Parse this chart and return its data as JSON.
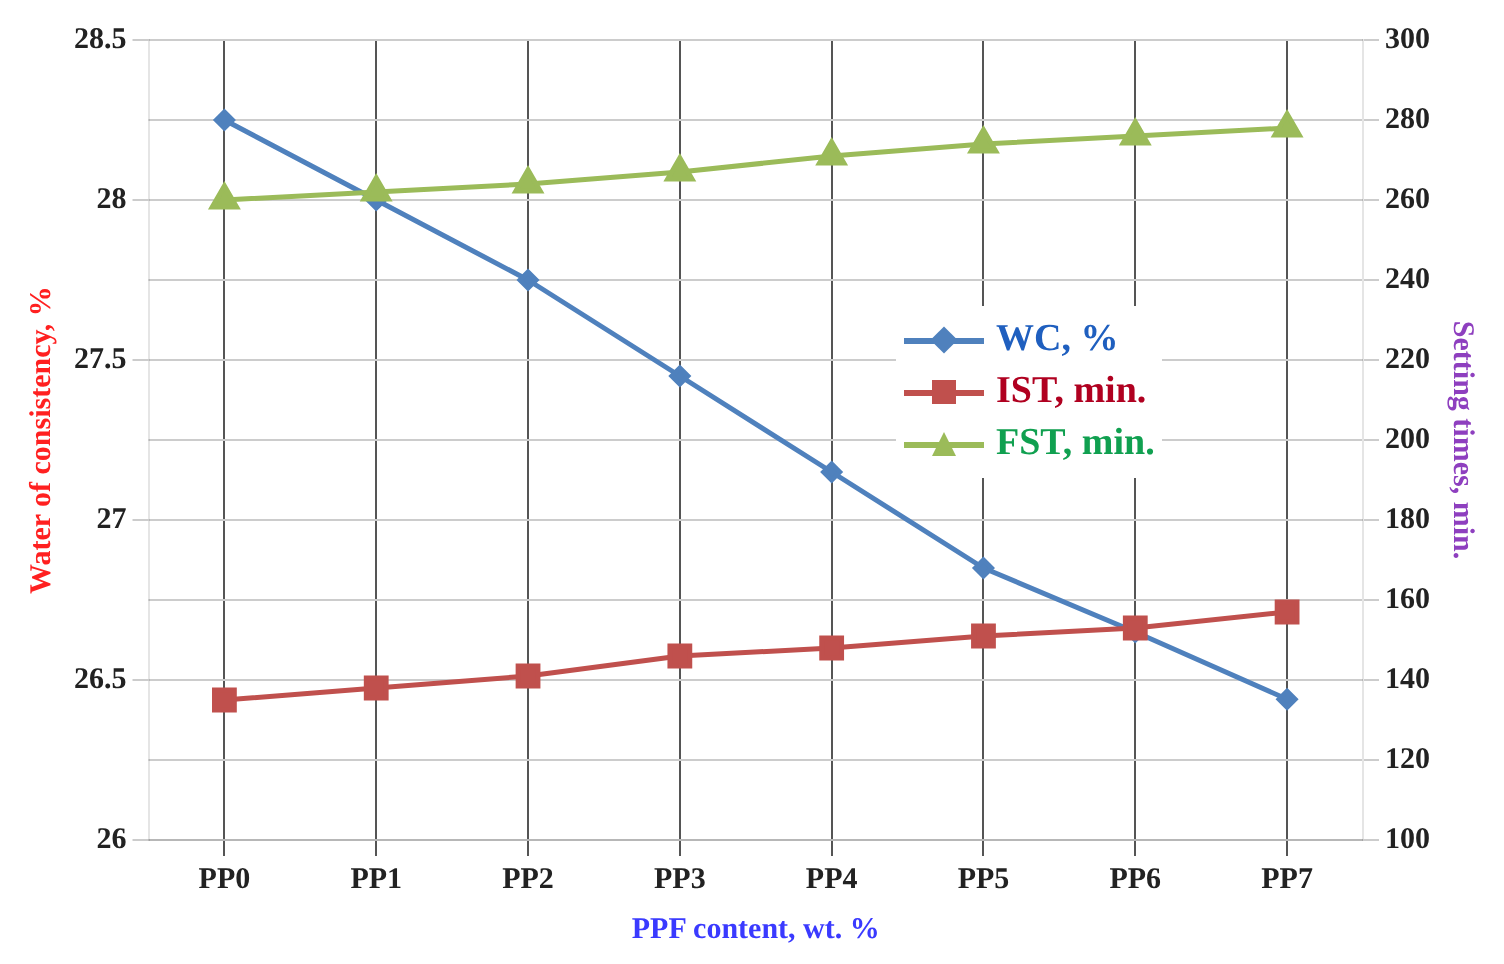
{
  "chart_data": {
    "type": "line",
    "xlabel": "PPF content, wt. %",
    "ylabel": "Water of consistency, %",
    "y2label": "Setting times, min.",
    "categories": [
      "PP0",
      "PP1",
      "PP2",
      "PP3",
      "PP4",
      "PP5",
      "PP6",
      "PP7"
    ],
    "series": [
      {
        "name": "WC, %",
        "color": "#4f81bd",
        "marker": "diamond",
        "values": [
          28.25,
          28.0,
          27.75,
          27.45,
          27.15,
          26.85,
          26.65,
          26.44
        ]
      },
      {
        "name": "IST, min.",
        "color": "#c0504d",
        "marker": "square",
        "axis": "y2",
        "values": [
          135,
          138,
          141,
          146,
          148,
          151,
          153,
          157
        ]
      },
      {
        "name": "FST, min.",
        "color": "#9bbb59",
        "marker": "triangle",
        "axis": "y2",
        "values": [
          260,
          262,
          264,
          267,
          271,
          274,
          276,
          278
        ]
      }
    ],
    "ylim": [
      26,
      28.5
    ],
    "yticks": [
      26,
      26.5,
      27,
      27.5,
      28,
      28.5
    ],
    "y2lim": [
      100,
      300
    ],
    "y2ticks": [
      100,
      120,
      140,
      160,
      180,
      200,
      220,
      240,
      260,
      280,
      300
    ],
    "grid": true,
    "legend": "right"
  }
}
